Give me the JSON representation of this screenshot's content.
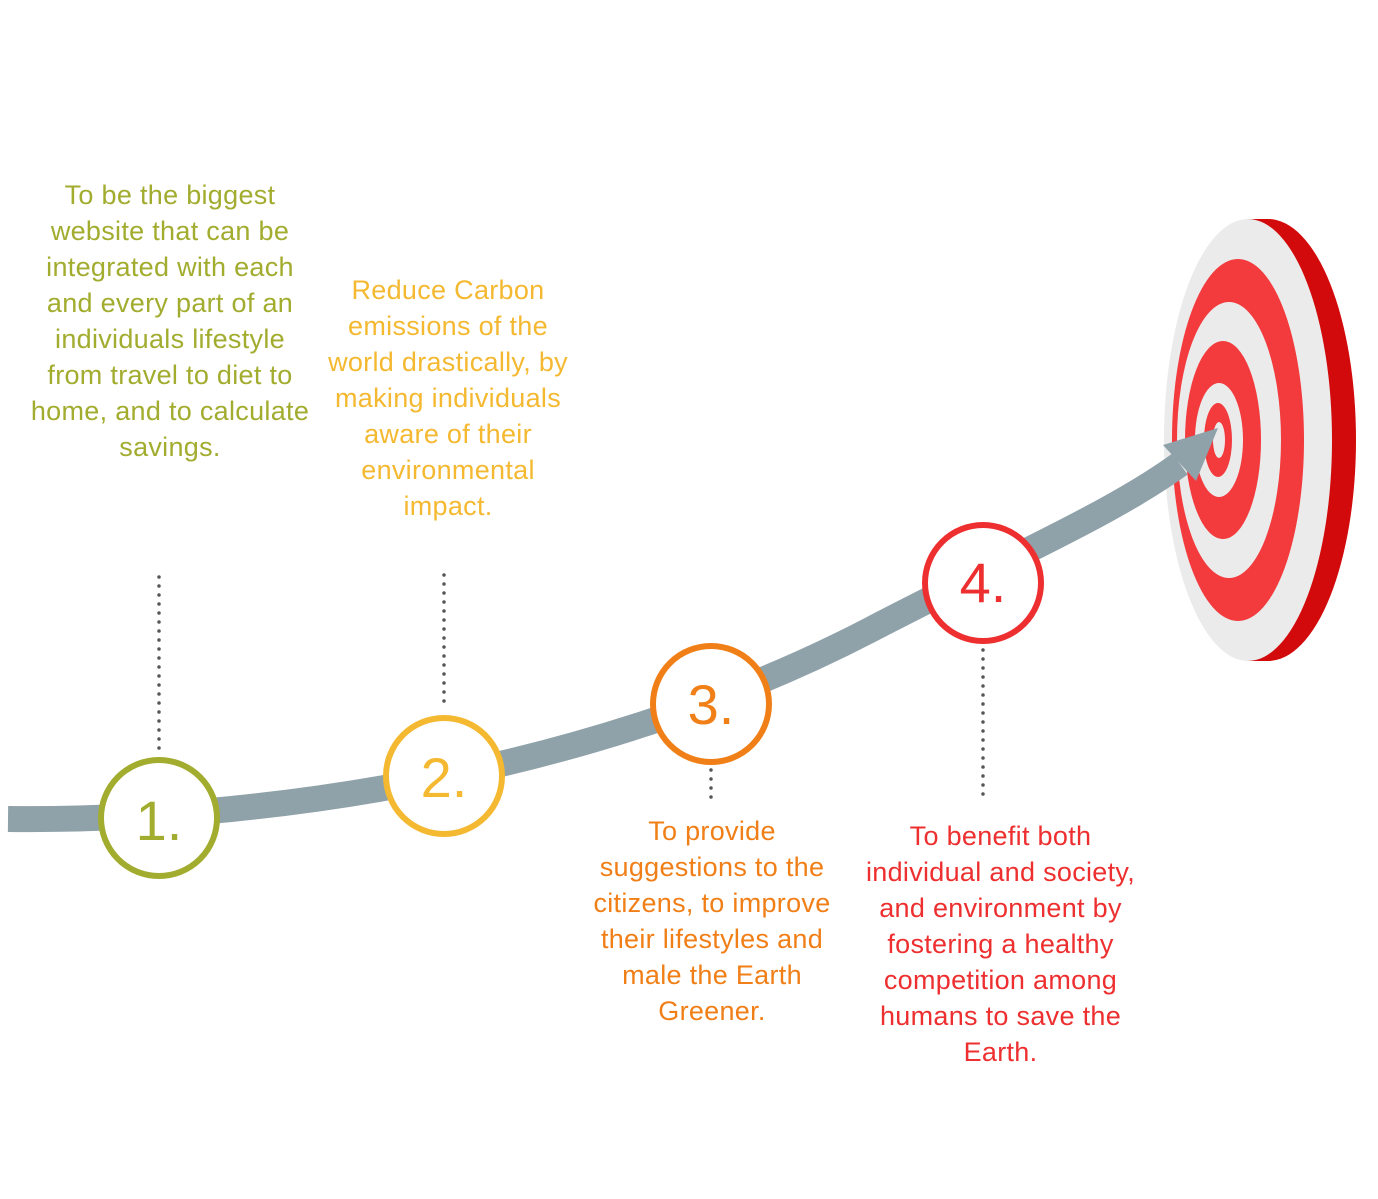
{
  "colors": {
    "path": "#8fa1a9",
    "dots": "#555555",
    "step1": "#a2ac2e",
    "step2": "#f4b931",
    "step3": "#f17f17",
    "step4": "#ee2f2f",
    "target_red": "#f33a3d",
    "target_dark_red": "#d20a0b",
    "target_white": "#ebebeb"
  },
  "steps": [
    {
      "number": "1.",
      "text": "To be the biggest website that can be integrated with each and every part of an individuals lifestyle from travel to diet to home, and to calculate savings."
    },
    {
      "number": "2.",
      "text": "Reduce Carbon emissions of the world drastically, by making individuals aware of their environmental impact."
    },
    {
      "number": "3.",
      "text": "To provide suggestions to the citizens, to improve their lifestyles and male the Earth Greener."
    },
    {
      "number": "4.",
      "text": "To benefit both individual and society, and environment by fostering a healthy competition among humans to save the Earth."
    }
  ]
}
